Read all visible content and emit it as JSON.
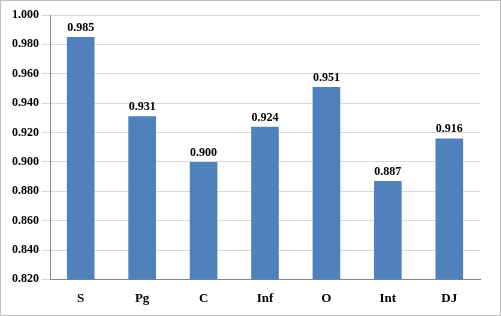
{
  "chart_data": {
    "type": "bar",
    "categories": [
      "S",
      "Pg",
      "C",
      "Inf",
      "O",
      "Int",
      "DJ"
    ],
    "values": [
      0.985,
      0.931,
      0.9,
      0.924,
      0.951,
      0.887,
      0.916
    ],
    "value_labels": [
      "0.985",
      "0.931",
      "0.900",
      "0.924",
      "0.951",
      "0.887",
      "0.916"
    ],
    "color": "#4f81bd",
    "ylim": [
      0.82,
      1.0
    ],
    "yticks": [
      {
        "value": 0.82,
        "label": "0.820"
      },
      {
        "value": 0.84,
        "label": "0.840"
      },
      {
        "value": 0.86,
        "label": "0.860"
      },
      {
        "value": 0.88,
        "label": "0.880"
      },
      {
        "value": 0.9,
        "label": "0.900"
      },
      {
        "value": 0.92,
        "label": "0.920"
      },
      {
        "value": 0.94,
        "label": "0.940"
      },
      {
        "value": 0.96,
        "label": "0.960"
      },
      {
        "value": 0.98,
        "label": "0.980"
      },
      {
        "value": 1.0,
        "label": "1.000"
      }
    ],
    "grid": true,
    "data_labels": true
  }
}
